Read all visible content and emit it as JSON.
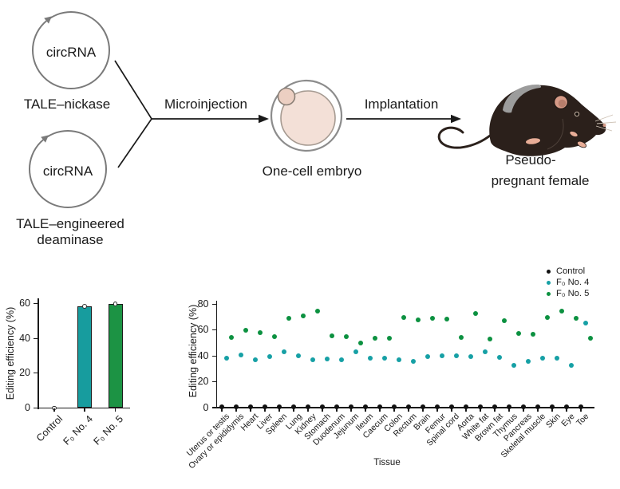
{
  "figure": {
    "diagram": {
      "plasmid_top": {
        "label": "circRNA",
        "caption": "TALE–nickase"
      },
      "plasmid_bottom": {
        "label": "circRNA",
        "caption_line1": "TALE–engineered",
        "caption_line2": "deaminase"
      },
      "microinjection_label": "Microinjection",
      "embryo_label": "One-cell embryo",
      "implantation_label": "Implantation",
      "mouse_label_line1": "Pseudo-",
      "mouse_label_line2": "pregnant female",
      "colors": {
        "embryo_fill": "#f3e0d7",
        "polar_body_fill": "#eccfc2",
        "mouse_body": "#2b201b",
        "ear_pink": "#d69a87",
        "paw_pink": "#e8ad97"
      }
    }
  },
  "chart_data": [
    {
      "type": "bar",
      "title": "",
      "categories": [
        "Control",
        "F₀ No. 4",
        "F₀ No. 5"
      ],
      "values": [
        0,
        58.5,
        60
      ],
      "bar_colors": [
        "#111111",
        "#179c9e",
        "#1c9344"
      ],
      "marker": "open-circle",
      "xlabel": "",
      "ylabel": "Editing efficiency (%)",
      "ylim": [
        0,
        60
      ],
      "yticks": [
        0,
        20,
        40,
        60
      ],
      "grid": false
    },
    {
      "type": "scatter",
      "title": "",
      "categories": [
        "Uterus or testis",
        "Ovary or epididymis",
        "Heart",
        "Liver",
        "Spleen",
        "Lung",
        "Kidney",
        "Stomach",
        "Duodenum",
        "Jejunum",
        "Ileum",
        "Caecum",
        "Colon",
        "Rectum",
        "Brain",
        "Femur",
        "Spinal cord",
        "Aorta",
        "White fat",
        "Brown fat",
        "Thymus",
        "Pancreas",
        "Skeletal muscle",
        "Skin",
        "Eye",
        "Toe"
      ],
      "series": [
        {
          "name": "Control",
          "color": "#111111",
          "values": [
            0,
            0,
            0,
            0,
            0,
            0,
            0,
            0,
            0,
            0,
            0,
            0,
            0,
            0,
            0,
            0,
            0,
            0,
            0,
            0,
            0,
            0,
            0,
            0,
            0,
            0
          ]
        },
        {
          "name": "F₀ No. 4",
          "color": "#16a0a5",
          "values": [
            38,
            41,
            37,
            39.5,
            43,
            40,
            37,
            37.5,
            37,
            43,
            38,
            38.5,
            37,
            36,
            39.5,
            40,
            40,
            39.5,
            43.5,
            39,
            33,
            35.5,
            38.5,
            38.5,
            33,
            65.5
          ]
        },
        {
          "name": "F₀ No. 5",
          "color": "#0c9140",
          "values": [
            54.5,
            60,
            58,
            55,
            69,
            71,
            74.5,
            55.5,
            55,
            50,
            53.5,
            54,
            70,
            68,
            69,
            68.5,
            54.5,
            73,
            53,
            67.5,
            57.5,
            57,
            70,
            74.5,
            69,
            53.5
          ]
        }
      ],
      "xlabel": "Tissue",
      "ylabel": "Editing efficiency (%)",
      "ylim": [
        0,
        80
      ],
      "yticks": [
        0,
        20,
        40,
        60,
        80
      ],
      "legend_position": "top-right",
      "grid": false
    }
  ]
}
